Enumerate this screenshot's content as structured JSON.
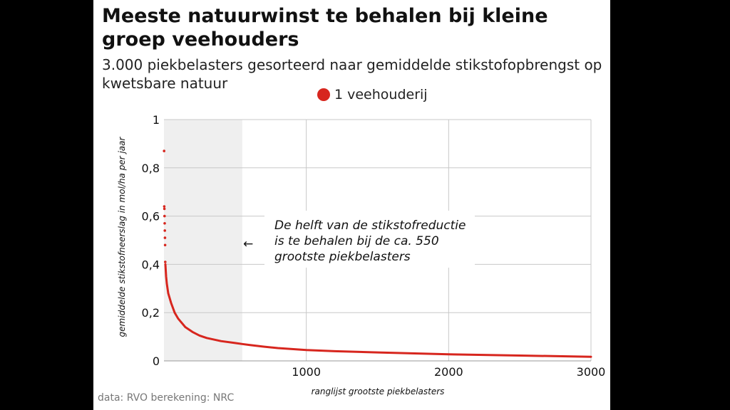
{
  "title": "Meeste natuurwinst te behalen bij kleine groep veehouders",
  "subtitle": "3.000 piekbelasters gesorteerd naar gemiddelde stikstofopbrengst op kwetsbare natuur",
  "legend": {
    "label": "1 veehouderij"
  },
  "footer": "data: RVO berekening: NRC",
  "colors": {
    "series": "#d7261e",
    "highlight": "#efefef",
    "grid": "#c8c8c8"
  },
  "chart_data": {
    "type": "scatter",
    "xlabel": "ranglijst grootste piekbelasters",
    "ylabel": "gemiddelde stikstofneerslag in mol/ha per jaar",
    "xlim": [
      0,
      3000
    ],
    "ylim": [
      0,
      1
    ],
    "xticks": [
      1000,
      2000,
      3000
    ],
    "xtick_labels": [
      "1000",
      "2000",
      "3000"
    ],
    "yticks": [
      0,
      0.2,
      0.4,
      0.6,
      0.8,
      1
    ],
    "ytick_labels": [
      "0",
      "0,2",
      "0,4",
      "0,6",
      "0,8",
      "1"
    ],
    "grid": true,
    "highlight_range": [
      0,
      550
    ],
    "series": [
      {
        "x": [
          1,
          2,
          3,
          4,
          5,
          6,
          7,
          8,
          9,
          10,
          12,
          15,
          20,
          30,
          50,
          75,
          100,
          150,
          200,
          250,
          300,
          400,
          500,
          550,
          600,
          700,
          800,
          1000,
          1200,
          1500,
          2000,
          2500,
          3000
        ],
        "y": [
          0.87,
          0.64,
          0.63,
          0.6,
          0.57,
          0.54,
          0.51,
          0.48,
          0.41,
          0.4,
          0.38,
          0.35,
          0.32,
          0.28,
          0.24,
          0.2,
          0.175,
          0.14,
          0.12,
          0.105,
          0.095,
          0.082,
          0.074,
          0.07,
          0.066,
          0.059,
          0.053,
          0.045,
          0.04,
          0.035,
          0.027,
          0.022,
          0.017
        ]
      }
    ],
    "annotations": [
      {
        "text": [
          "De helft van de stikstofreductie",
          "is te behalen bij de ca. 550",
          "grootste piekbelasters"
        ],
        "arrow": "←"
      }
    ]
  }
}
